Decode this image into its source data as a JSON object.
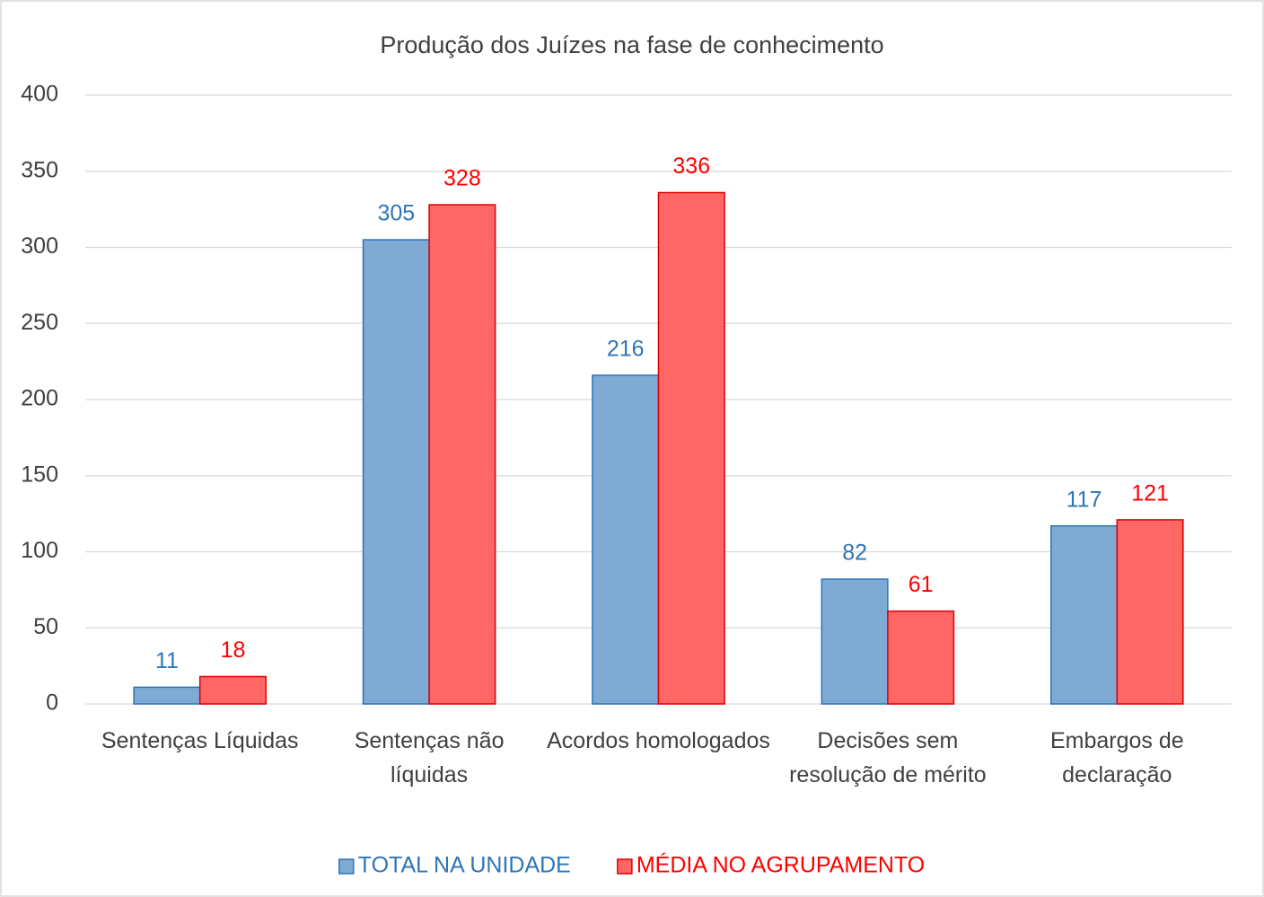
{
  "chart_data": {
    "type": "bar",
    "title": "Produção dos Juízes na fase de conhecimento",
    "categories": [
      "Sentenças Líquidas",
      "Sentenças não líquidas",
      "Acordos homologados",
      "Decisões sem resolução de mérito",
      "Embargos de declaração"
    ],
    "series": [
      {
        "name": "TOTAL NA UNIDADE",
        "color": "#7eaad4",
        "values": [
          11,
          305,
          216,
          82,
          117
        ]
      },
      {
        "name": "MÉDIA NO AGRUPAMENTO",
        "color": "#ff6666",
        "values": [
          18,
          328,
          336,
          61,
          121
        ]
      }
    ],
    "ylim": [
      0,
      400
    ],
    "yticks": [
      0,
      50,
      100,
      150,
      200,
      250,
      300,
      350,
      400
    ],
    "grid": true,
    "legend": "bottom"
  }
}
